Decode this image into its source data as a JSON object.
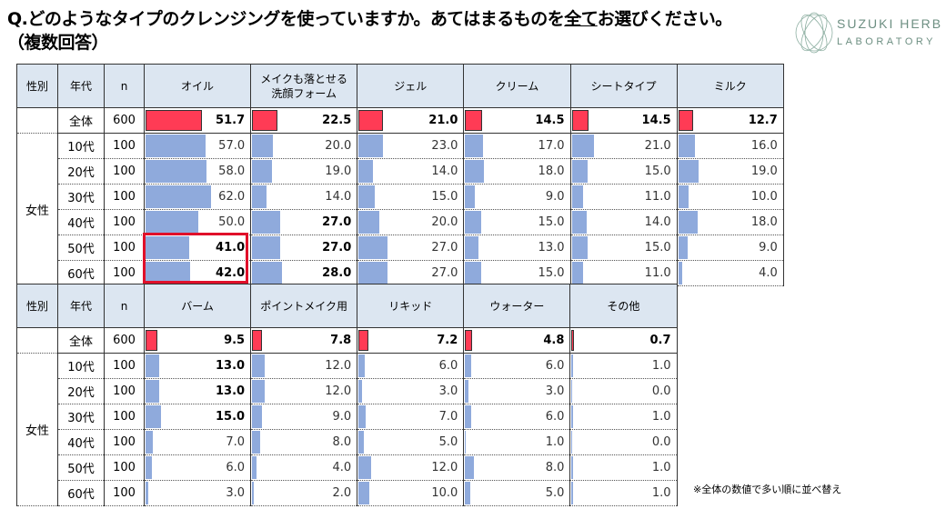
{
  "title": {
    "line1_pre": "Q.どのようなタイプのクレンジングを使っていますか。あてはまるものを",
    "line1_underline": "全て",
    "line1_post": "お選びください。",
    "line2": "（複数回答）"
  },
  "logo": {
    "line1": "SUZUKI HERB",
    "line2": "LABORATORY"
  },
  "note": "※全体の数値で多い順に並べ替え",
  "colors": {
    "total_bar": "#ff3b55",
    "age_bar": "#8faadc",
    "header_bg": "#dce6f1",
    "highlight": "#e0102a"
  },
  "chart_data": {
    "type": "table",
    "header": {
      "gender": "性別",
      "age": "年代",
      "n": "n"
    },
    "gender_label": "女性",
    "rows": [
      {
        "age": "全体",
        "n": "600"
      },
      {
        "age": "10代",
        "n": "100"
      },
      {
        "age": "20代",
        "n": "100"
      },
      {
        "age": "30代",
        "n": "100"
      },
      {
        "age": "40代",
        "n": "100"
      },
      {
        "age": "50代",
        "n": "100"
      },
      {
        "age": "60代",
        "n": "100"
      }
    ],
    "tables": [
      {
        "columns": [
          {
            "name": "オイル",
            "values": [
              51.7,
              57.0,
              58.0,
              62.0,
              50.0,
              41.0,
              42.0
            ],
            "bold": [
              1,
              0,
              0,
              0,
              0,
              1,
              1
            ]
          },
          {
            "name": "メイクも落とせる\n洗顔フォーム",
            "values": [
              22.5,
              20.0,
              19.0,
              14.0,
              27.0,
              27.0,
              28.0
            ],
            "bold": [
              1,
              0,
              0,
              0,
              1,
              1,
              1
            ]
          },
          {
            "name": "ジェル",
            "values": [
              21.0,
              23.0,
              14.0,
              15.0,
              20.0,
              27.0,
              27.0
            ],
            "bold": [
              1,
              0,
              0,
              0,
              0,
              0,
              0
            ]
          },
          {
            "name": "クリーム",
            "values": [
              14.5,
              17.0,
              18.0,
              9.0,
              15.0,
              13.0,
              15.0
            ],
            "bold": [
              1,
              0,
              0,
              0,
              0,
              0,
              0
            ]
          },
          {
            "name": "シートタイプ",
            "values": [
              14.5,
              21.0,
              15.0,
              11.0,
              14.0,
              15.0,
              11.0
            ],
            "bold": [
              1,
              0,
              0,
              0,
              0,
              0,
              0
            ]
          },
          {
            "name": "ミルク",
            "values": [
              12.7,
              16.0,
              19.0,
              10.0,
              18.0,
              9.0,
              4.0
            ],
            "bold": [
              1,
              0,
              0,
              0,
              0,
              0,
              0
            ]
          }
        ]
      },
      {
        "columns": [
          {
            "name": "バーム",
            "values": [
              9.5,
              13.0,
              13.0,
              15.0,
              7.0,
              6.0,
              3.0
            ],
            "bold": [
              1,
              1,
              1,
              1,
              0,
              0,
              0
            ]
          },
          {
            "name": "ポイントメイク用",
            "values": [
              7.8,
              12.0,
              12.0,
              9.0,
              8.0,
              4.0,
              2.0
            ],
            "bold": [
              1,
              0,
              0,
              0,
              0,
              0,
              0
            ]
          },
          {
            "name": "リキッド",
            "values": [
              7.2,
              6.0,
              3.0,
              7.0,
              5.0,
              12.0,
              10.0
            ],
            "bold": [
              1,
              0,
              0,
              0,
              0,
              0,
              0
            ]
          },
          {
            "name": "ウォーター",
            "values": [
              4.8,
              6.0,
              3.0,
              6.0,
              1.0,
              8.0,
              5.0
            ],
            "bold": [
              1,
              0,
              0,
              0,
              0,
              0,
              0
            ]
          },
          {
            "name": "その他",
            "values": [
              0.7,
              1.0,
              0.0,
              1.0,
              0.0,
              1.0,
              1.0
            ],
            "bold": [
              1,
              0,
              0,
              0,
              0,
              0,
              0
            ]
          }
        ]
      }
    ],
    "highlighted": {
      "column": "オイル",
      "rows": [
        "50代",
        "60代"
      ]
    }
  }
}
